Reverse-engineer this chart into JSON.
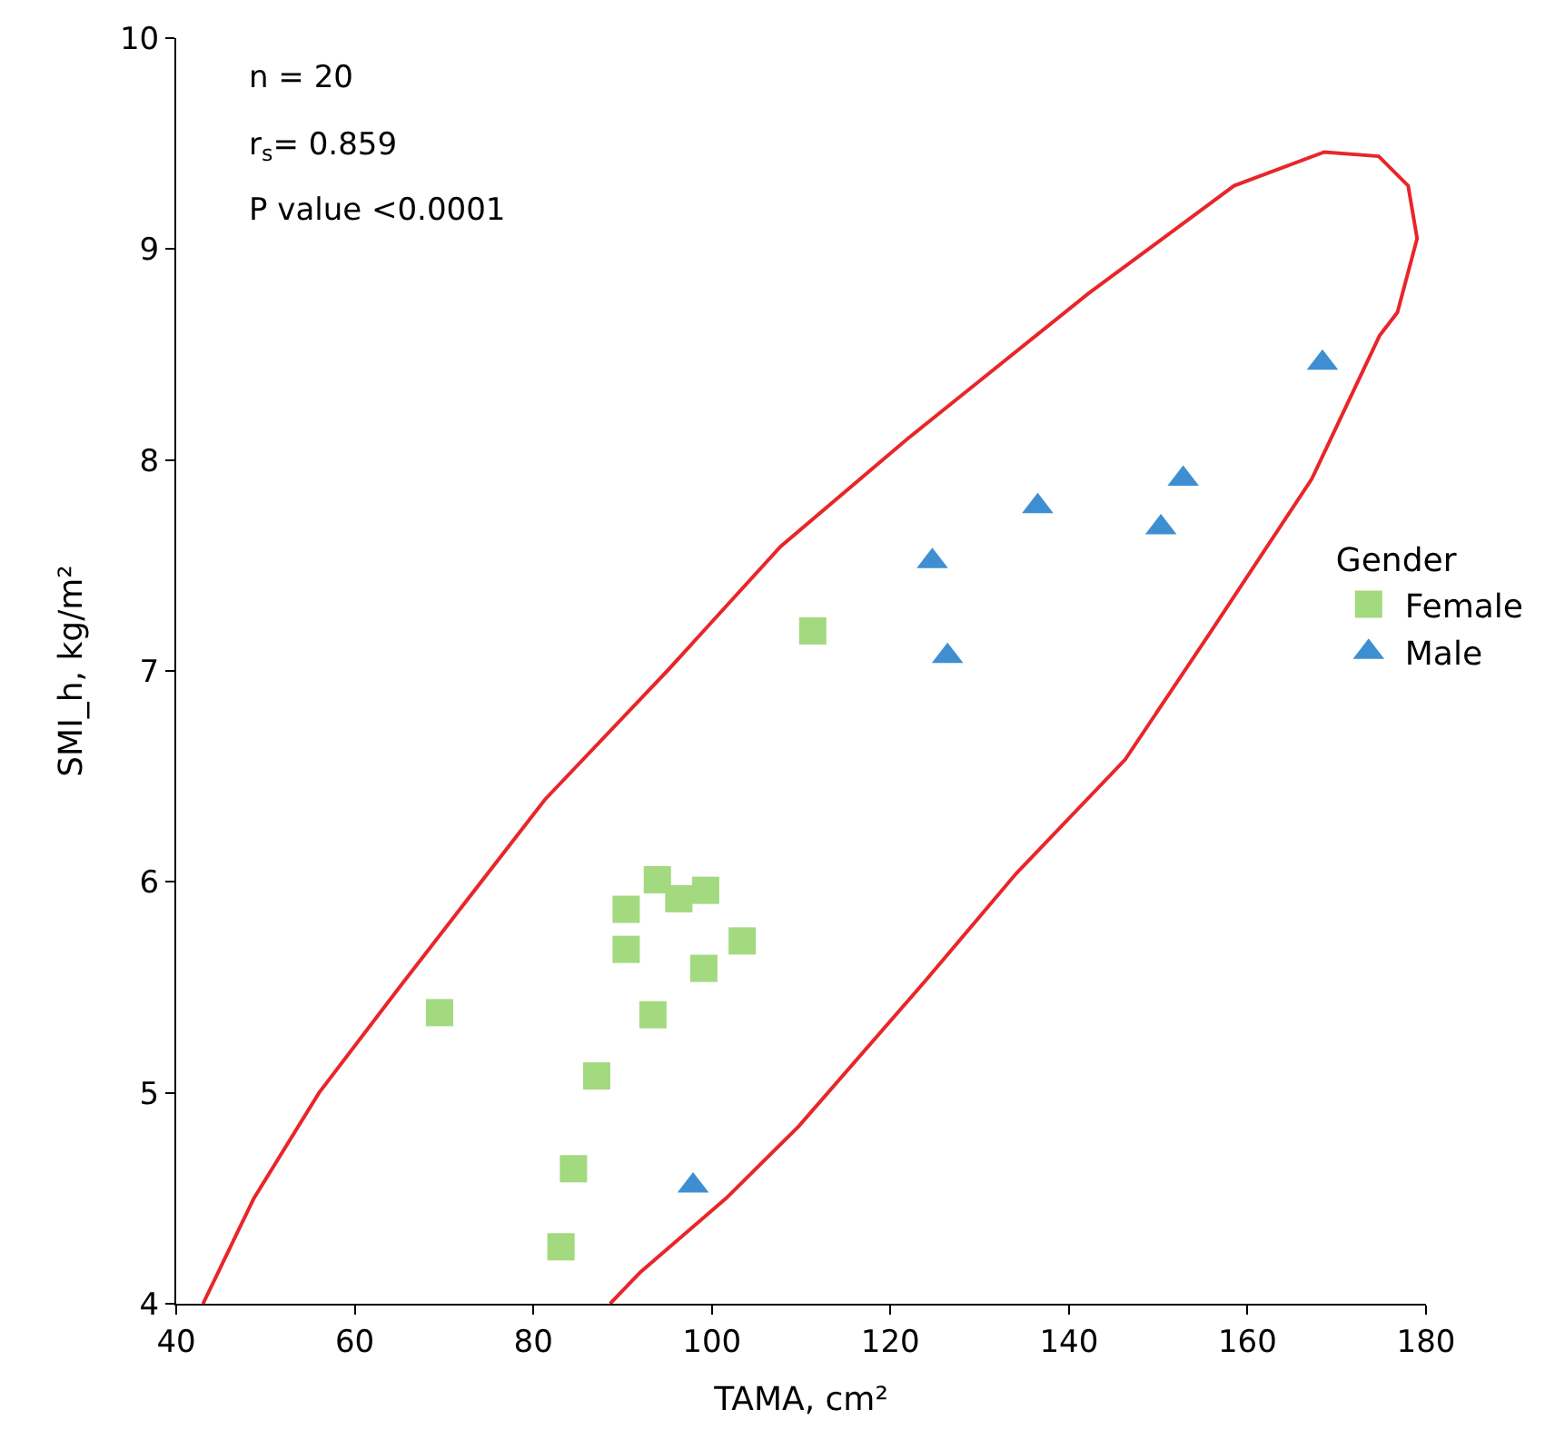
{
  "chart_data": {
    "type": "scatter",
    "xlabel": "TAMA, cm²",
    "ylabel": "SMI_h, kg/m²",
    "legend_title": "Gender",
    "xlim": [
      40,
      180
    ],
    "xticks": [
      40,
      60,
      80,
      100,
      120,
      140,
      160,
      180
    ],
    "ylim": [
      4,
      10
    ],
    "yticks": [
      4,
      5,
      6,
      7,
      8,
      9,
      10
    ],
    "legend": "right",
    "annotations": [
      "n = 20",
      "r$_{s}$= 0.859",
      "P value <0.0001"
    ],
    "series": [
      {
        "name": "Female",
        "color": "#a3d97f",
        "marker": "square",
        "x": [
          69.5,
          87.1,
          84.5,
          83.1,
          90.4,
          90.4,
          93.9,
          96.3,
          99.3,
          93.4,
          99.1,
          103.4,
          111.3
        ],
        "values": [
          5.38,
          5.08,
          4.64,
          4.27,
          5.87,
          5.68,
          6.01,
          5.92,
          5.96,
          5.37,
          5.59,
          5.72,
          7.19
        ]
      },
      {
        "name": "Male",
        "color": "#3d8fd1",
        "marker": "triangle",
        "x": [
          97.9,
          124.7,
          126.4,
          136.5,
          150.3,
          152.8,
          168.4
        ],
        "values": [
          4.56,
          7.52,
          7.07,
          7.78,
          7.68,
          7.91,
          8.46
        ]
      },
      {
        "type": "line",
        "color": "#e8262a",
        "marker": "none",
        "line_style": "solid",
        "x": [
          43.0,
          48.7,
          56.0,
          65.0,
          81.3,
          95.0,
          107.7,
          121.9,
          142.2,
          158.5,
          168.6,
          174.7,
          178.0,
          179.0,
          176.8,
          174.8,
          167.2,
          155.8,
          146.3,
          134.1,
          123.9,
          109.7,
          101.6,
          92.0,
          88.6
        ],
        "values": [
          4.0,
          4.5,
          5.0,
          5.5,
          6.39,
          7.0,
          7.59,
          8.1,
          8.79,
          9.3,
          9.46,
          9.44,
          9.3,
          9.05,
          8.7,
          8.59,
          7.91,
          7.18,
          6.58,
          6.04,
          5.53,
          4.84,
          4.5,
          4.15,
          4.0
        ]
      }
    ]
  }
}
